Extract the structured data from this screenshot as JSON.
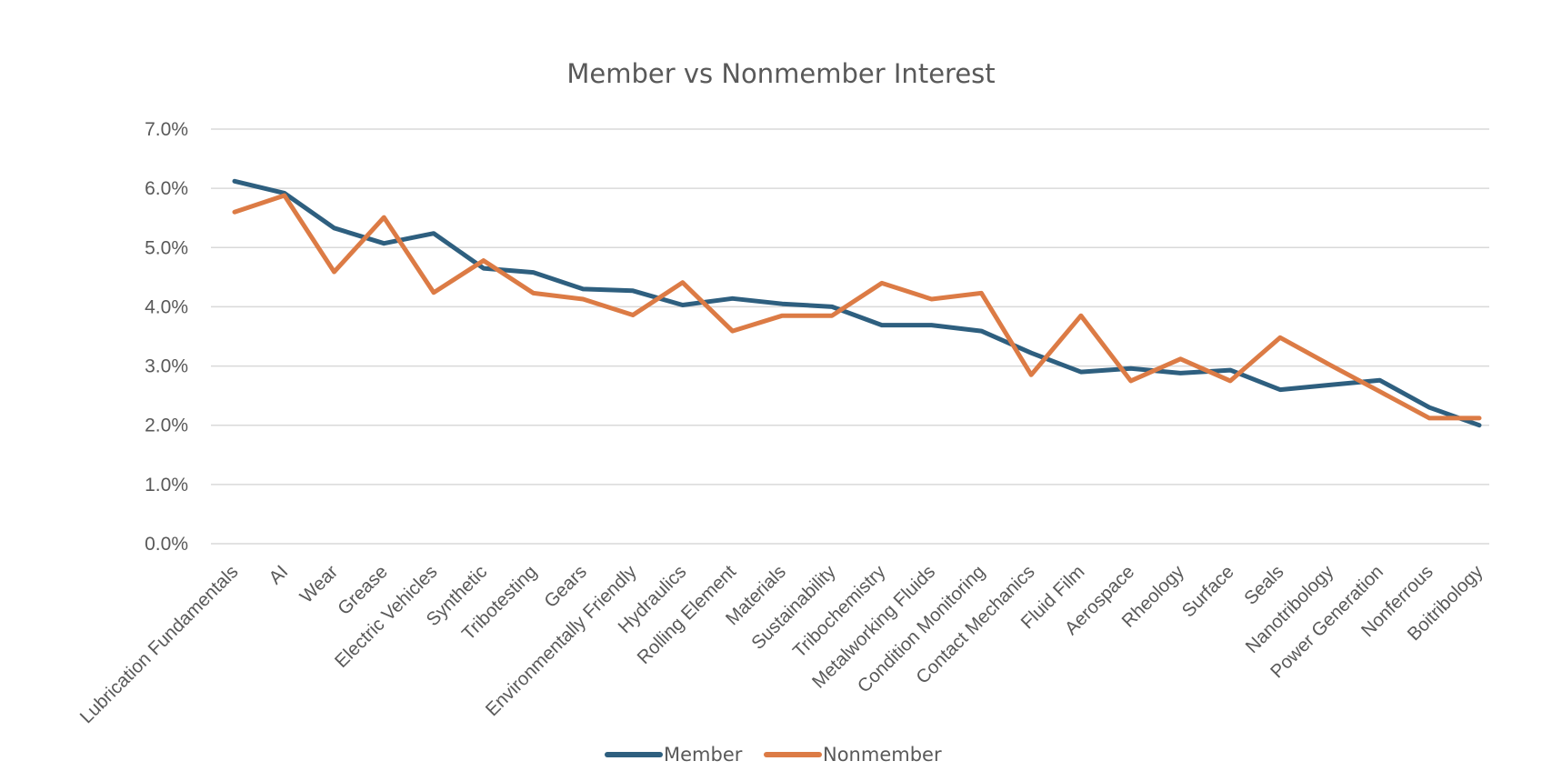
{
  "chart_data": {
    "type": "line",
    "title": "Member vs Nonmember Interest",
    "xlabel": "",
    "ylabel": "",
    "ylim": [
      0,
      0.07
    ],
    "yticks": [
      "0.0%",
      "1.0%",
      "2.0%",
      "3.0%",
      "4.0%",
      "5.0%",
      "6.0%",
      "7.0%"
    ],
    "grid": true,
    "legend": "bottom",
    "categories": [
      "Lubrication Fundamentals",
      "AI",
      "Wear",
      "Grease",
      "Electric Vehicles",
      "Synthetic",
      "Tribotesting",
      "Gears",
      "Environmentally Friendly",
      "Hydraulics",
      "Rolling Element",
      "Materials",
      "Sustainability",
      "Tribochemistry",
      "Metalworking Fluids",
      "Condition Monitoring",
      "Contact Mechanics",
      "Fluid Film",
      "Aerospace",
      "Rheology",
      "Surface",
      "Seals",
      "Nanotribology",
      "Power Generation",
      "Nonferrous",
      "Boitribology"
    ],
    "series": [
      {
        "name": "Member",
        "color": "#2e5f7f",
        "values": [
          0.0612,
          0.0592,
          0.0533,
          0.0507,
          0.0524,
          0.0465,
          0.0458,
          0.043,
          0.0427,
          0.0403,
          0.0414,
          0.0405,
          0.04,
          0.0369,
          0.0369,
          0.0359,
          0.0322,
          0.029,
          0.0296,
          0.0288,
          0.0293,
          0.026,
          0.0268,
          0.0276,
          0.023,
          0.02
        ]
      },
      {
        "name": "Nonmember",
        "color": "#dc7b45",
        "values": [
          0.056,
          0.0588,
          0.0459,
          0.0551,
          0.0424,
          0.0478,
          0.0423,
          0.0413,
          0.0386,
          0.0441,
          0.0359,
          0.0385,
          0.0385,
          0.044,
          0.0413,
          0.0423,
          0.0285,
          0.0385,
          0.0275,
          0.0312,
          0.0275,
          0.0348,
          0.0302,
          0.0257,
          0.0212,
          0.0212
        ]
      }
    ]
  }
}
